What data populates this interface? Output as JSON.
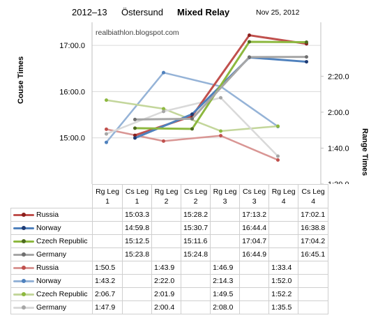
{
  "header": {
    "season": "2012–13",
    "venue": "Östersund",
    "event": "Mixed Relay",
    "date": "Nov 25, 2012"
  },
  "chart_data": {
    "type": "line",
    "watermark": "realbiathlon.blogspot.com",
    "ylabel": "Couse Times",
    "y2label": "Range Times",
    "categories": [
      "Rg Leg 1",
      "Cs Leg 1",
      "Rg Leg 2",
      "Cs Leg 2",
      "Rg Leg 3",
      "Cs Leg 3",
      "Rg Leg 4",
      "Cs Leg 4"
    ],
    "category_lines": [
      [
        "Rg Leg",
        "1"
      ],
      [
        "Cs Leg",
        "1"
      ],
      [
        "Rg Leg",
        "2"
      ],
      [
        "Cs Leg",
        "2"
      ],
      [
        "Rg Leg",
        "3"
      ],
      [
        "Cs Leg",
        "3"
      ],
      [
        "Rg Leg",
        "4"
      ],
      [
        "Cs Leg",
        "4"
      ]
    ],
    "y_ticks": [
      "15:00.0",
      "16:00.0",
      "17:00.0"
    ],
    "y_range_minutes": [
      14,
      17.5
    ],
    "y2_ticks": [
      "1:20.0",
      "1:40.0",
      "2:00.0",
      "2:20.0"
    ],
    "y2_range_seconds": [
      80,
      170
    ],
    "grid": true,
    "legend_placement": "data table below chart",
    "course_series": [
      {
        "name": "Russia",
        "color": "#c0504d",
        "dot": "#8b1f1c",
        "values": [
          null,
          "15:03.3",
          null,
          "15:28.2",
          null,
          "17:13.2",
          null,
          "17:02.1"
        ]
      },
      {
        "name": "Norway",
        "color": "#4f81bd",
        "dot": "#1f3b73",
        "values": [
          null,
          "14:59.8",
          null,
          "15:30.7",
          null,
          "16:44.4",
          null,
          "16:38.8"
        ]
      },
      {
        "name": "Czech Republic",
        "color": "#8db83f",
        "dot": "#4e6b1f",
        "values": [
          null,
          "15:12.5",
          null,
          "15:11.6",
          null,
          "17:04.7",
          null,
          "17:04.2"
        ]
      },
      {
        "name": "Germany",
        "color": "#a6a6a6",
        "dot": "#6f6f6f",
        "values": [
          null,
          "15:23.8",
          null,
          "15:24.8",
          null,
          "16:44.9",
          null,
          "16:45.1"
        ]
      }
    ],
    "range_series": [
      {
        "name": "Russia",
        "color": "#d99694",
        "dot": "#c0504d",
        "values": [
          "1:50.5",
          null,
          "1:43.9",
          null,
          "1:46.9",
          null,
          "1:33.4",
          null
        ]
      },
      {
        "name": "Norway",
        "color": "#95b3d7",
        "dot": "#4f81bd",
        "values": [
          "1:43.2",
          null,
          "2:22.0",
          null,
          "2:14.3",
          null,
          "1:52.0",
          null
        ]
      },
      {
        "name": "Czech Republic",
        "color": "#c3d69b",
        "dot": "#8db83f",
        "values": [
          "2:06.7",
          null,
          "2:01.9",
          null,
          "1:49.5",
          null,
          "1:52.2",
          null
        ]
      },
      {
        "name": "Germany",
        "color": "#d9d9d9",
        "dot": "#a6a6a6",
        "values": [
          "1:47.9",
          null,
          "2:00.4",
          null,
          "2:08.0",
          null,
          "1:35.5",
          null
        ]
      }
    ]
  }
}
